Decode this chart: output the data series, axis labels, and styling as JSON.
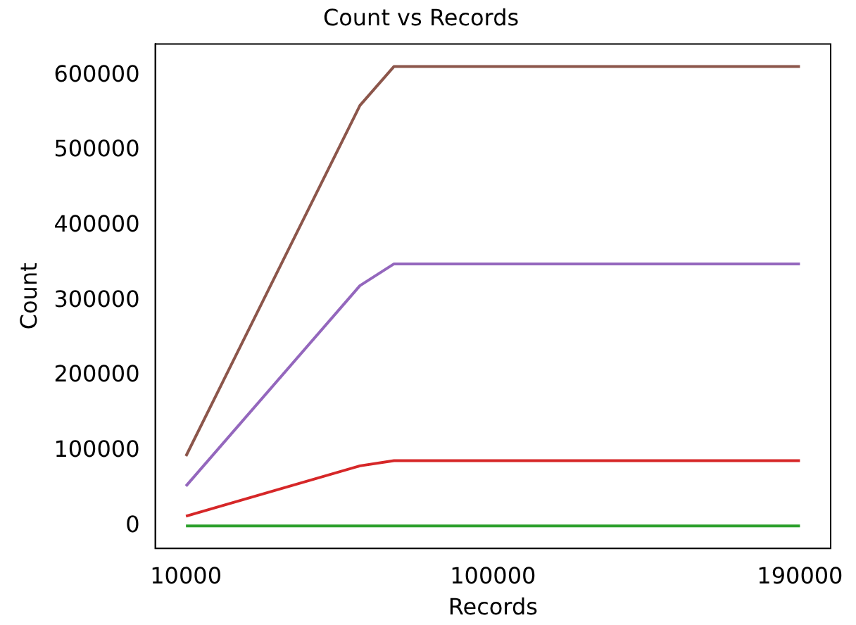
{
  "chart_data": {
    "type": "line",
    "title": "Count vs Records",
    "xlabel": "Records",
    "ylabel": "Count",
    "x": [
      10000,
      61000,
      71000,
      190000
    ],
    "series": [
      {
        "color": "#2ca02c",
        "values": [
          0,
          0,
          0,
          0
        ]
      },
      {
        "color": "#d62728",
        "values": [
          13000,
          80000,
          87000,
          87000
        ]
      },
      {
        "color": "#9467bd",
        "values": [
          53000,
          320000,
          349000,
          349000
        ]
      },
      {
        "color": "#8c564b",
        "values": [
          93000,
          560000,
          612000,
          612000
        ]
      }
    ],
    "xlim": [
      1000,
      199000
    ],
    "xticks": [
      10000,
      100000,
      190000
    ],
    "ylim": [
      -30000,
      642000
    ],
    "yticks": [
      0,
      100000,
      200000,
      300000,
      400000,
      500000,
      600000
    ],
    "grid": false,
    "legend": false,
    "marker": "none",
    "line_style": "solid"
  }
}
